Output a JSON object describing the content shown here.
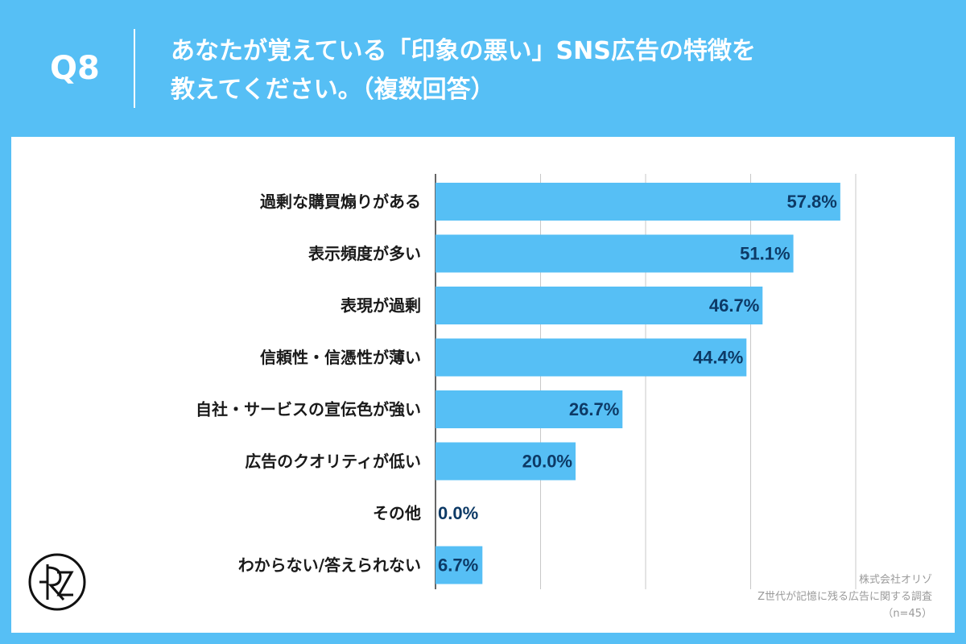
{
  "header": {
    "question_number": "Q8",
    "title_line1": "あなたが覚えている「印象の悪い」SNS広告の特徴を",
    "title_line2": "教えてください。（複数回答）"
  },
  "source": {
    "company": "株式会社オリゾ",
    "survey": "Z世代が記憶に残る広告に関する調査",
    "sample": "（n=45）"
  },
  "colors": {
    "background": "#56bff5",
    "bar": "#56bff5",
    "value_label": "#0d3a66",
    "category_label": "#1a1a1a",
    "grid": "#c8c8c8"
  },
  "chart_data": {
    "type": "bar",
    "orientation": "horizontal",
    "categories": [
      "過剰な購買煽りがある",
      "表示頻度が多い",
      "表現が過剰",
      "信頼性・信憑性が薄い",
      "自社・サービスの宣伝色が強い",
      "広告のクオリティが低い",
      "その他",
      "わからない/答えられない"
    ],
    "values": [
      57.8,
      51.1,
      46.7,
      44.4,
      26.7,
      20.0,
      0.0,
      6.7
    ],
    "value_labels": [
      "57.8%",
      "51.1%",
      "46.7%",
      "44.4%",
      "26.7%",
      "20.0%",
      "0.0%",
      "6.7%"
    ],
    "xlim": [
      0,
      70
    ],
    "grid": true,
    "gridlines_at": [
      0,
      15,
      30,
      45,
      60
    ],
    "legend": "none"
  }
}
